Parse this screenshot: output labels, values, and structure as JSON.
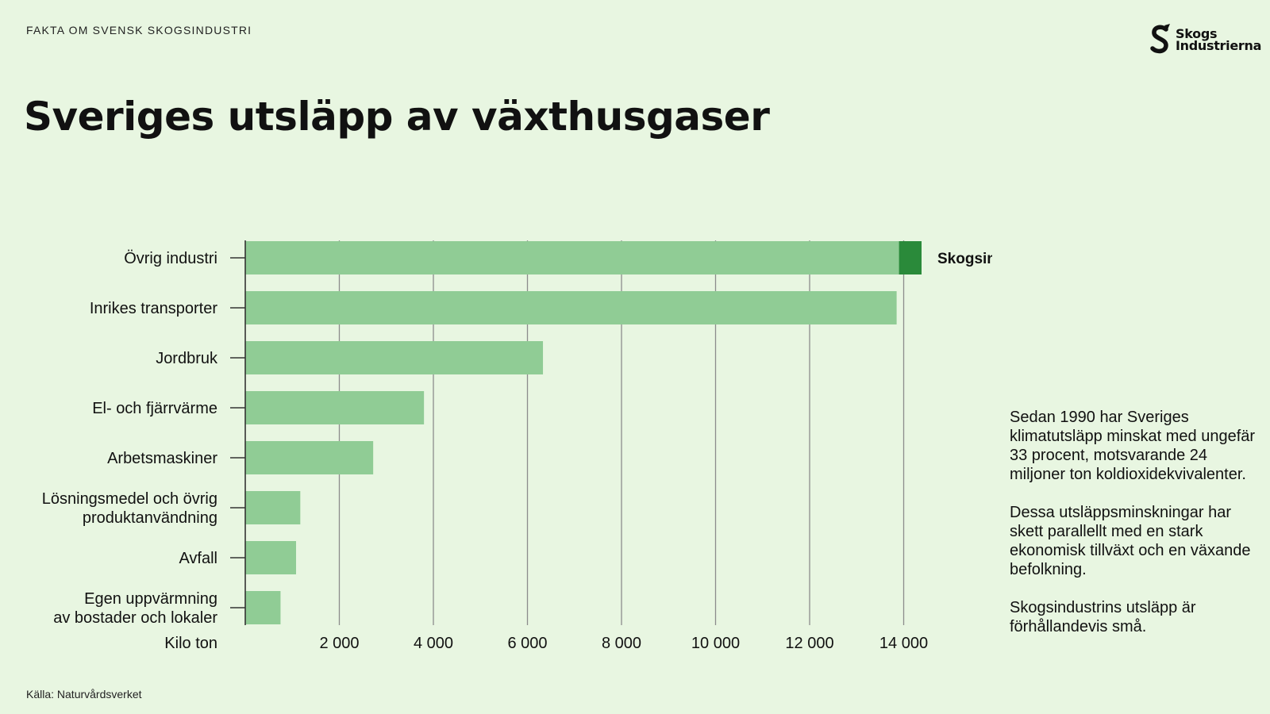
{
  "header": {
    "kicker": "FAKTA OM SVENSK SKOGSINDUSTRI",
    "logo_line1": "Skogs",
    "logo_line2": "Industrierna",
    "title": "Sveriges utsläpp av växthusgaser"
  },
  "chart_data": {
    "type": "bar",
    "orientation": "horizontal",
    "categories": [
      [
        "Övrig industri"
      ],
      [
        "Inrikes transporter"
      ],
      [
        "Jordbruk"
      ],
      [
        "El- och fjärrvärme"
      ],
      [
        "Arbetsmaskiner"
      ],
      [
        "Lösningsmedel och övrig",
        "produktanvändning"
      ],
      [
        "Avfall"
      ],
      [
        "Egen uppvärmning",
        "av bostader och lokaler"
      ]
    ],
    "values": [
      13900,
      13850,
      6330,
      3800,
      2720,
      1170,
      1080,
      750
    ],
    "highlight": {
      "category_index": 0,
      "start": 13900,
      "value": 480,
      "label": "Skogsindustri",
      "color": "#2a8a3a"
    },
    "bar_color": "#90cc95",
    "xlabel": "Kilo ton",
    "ylabel": "",
    "xlim": [
      0,
      14300
    ],
    "ticks": [
      2000,
      4000,
      6000,
      8000,
      10000,
      12000,
      14000
    ],
    "tick_labels": [
      "2 000",
      "4 000",
      "6 000",
      "8 000",
      "10 000",
      "12 000",
      "14 000"
    ],
    "grid": true,
    "grid_color": "#8c8c8c"
  },
  "side_text": {
    "para1": "Sedan 1990 har Sveriges klimatutsläpp minskat med ungefär 33 procent, motsvarande 24 miljoner ton koldioxidekvivalenter.",
    "para2": "Dessa utsläppsminskningar har skett parallellt med en stark ekonomisk tillväxt och en växande befolkning.",
    "para3": "Skogsindustrins utsläpp är förhållandevis små."
  },
  "footer": {
    "source": "Källa: Naturvårdsverket"
  }
}
